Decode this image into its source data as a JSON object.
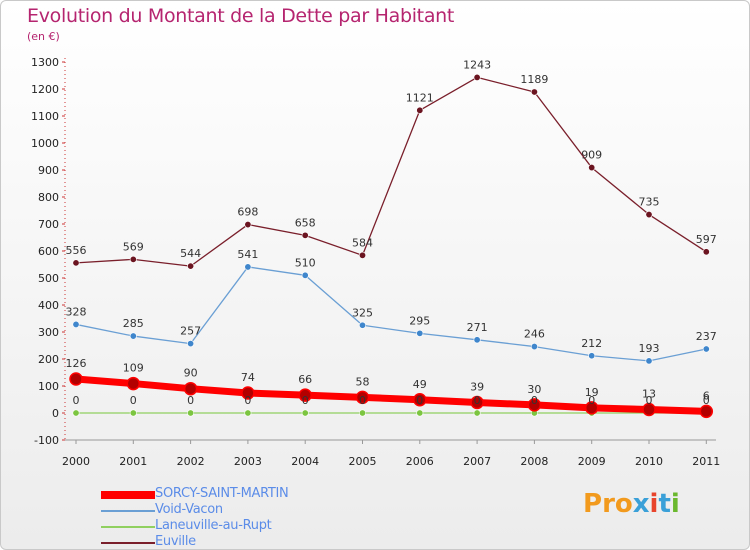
{
  "title": "Evolution du Montant de la Dette par Habitant",
  "subtitle": "(en €)",
  "logo": {
    "text": "Proxiti",
    "colors": [
      "#f29a1d",
      "#f29a1d",
      "#f29a1d",
      "#3aa0d8",
      "#e8442c",
      "#3aa0d8",
      "#6ab82e"
    ]
  },
  "chart_data": {
    "type": "line",
    "categories": [
      "2000",
      "2001",
      "2002",
      "2003",
      "2004",
      "2005",
      "2006",
      "2007",
      "2008",
      "2009",
      "2010",
      "2011"
    ],
    "ylim": [
      -100,
      1300
    ],
    "yticks": [
      -100,
      0,
      100,
      200,
      300,
      400,
      500,
      600,
      700,
      800,
      900,
      1000,
      1100,
      1200,
      1300
    ],
    "grid": false,
    "legend_position": "bottom-left",
    "series": [
      {
        "name": "SORCY-SAINT-MARTIN",
        "color": "#ff0000",
        "marker": "#b30000",
        "width": 7,
        "values": [
          126,
          109,
          90,
          74,
          66,
          58,
          49,
          39,
          30,
          19,
          13,
          6
        ]
      },
      {
        "name": "Void-Vacon",
        "color": "#6a9fd4",
        "marker": "#3f86cc",
        "width": 1.3,
        "values": [
          328,
          285,
          257,
          541,
          510,
          325,
          295,
          271,
          246,
          212,
          193,
          237
        ]
      },
      {
        "name": "Laneuville-au-Rupt",
        "color": "#90d060",
        "marker": "#7cc540",
        "width": 1.3,
        "values": [
          0,
          0,
          0,
          0,
          0,
          0,
          0,
          0,
          0,
          0,
          0,
          0
        ]
      },
      {
        "name": "Euville",
        "color": "#7a1f2b",
        "marker": "#6b1420",
        "width": 1.3,
        "values": [
          556,
          569,
          544,
          698,
          658,
          584,
          1121,
          1243,
          1189,
          909,
          735,
          597
        ]
      }
    ]
  }
}
